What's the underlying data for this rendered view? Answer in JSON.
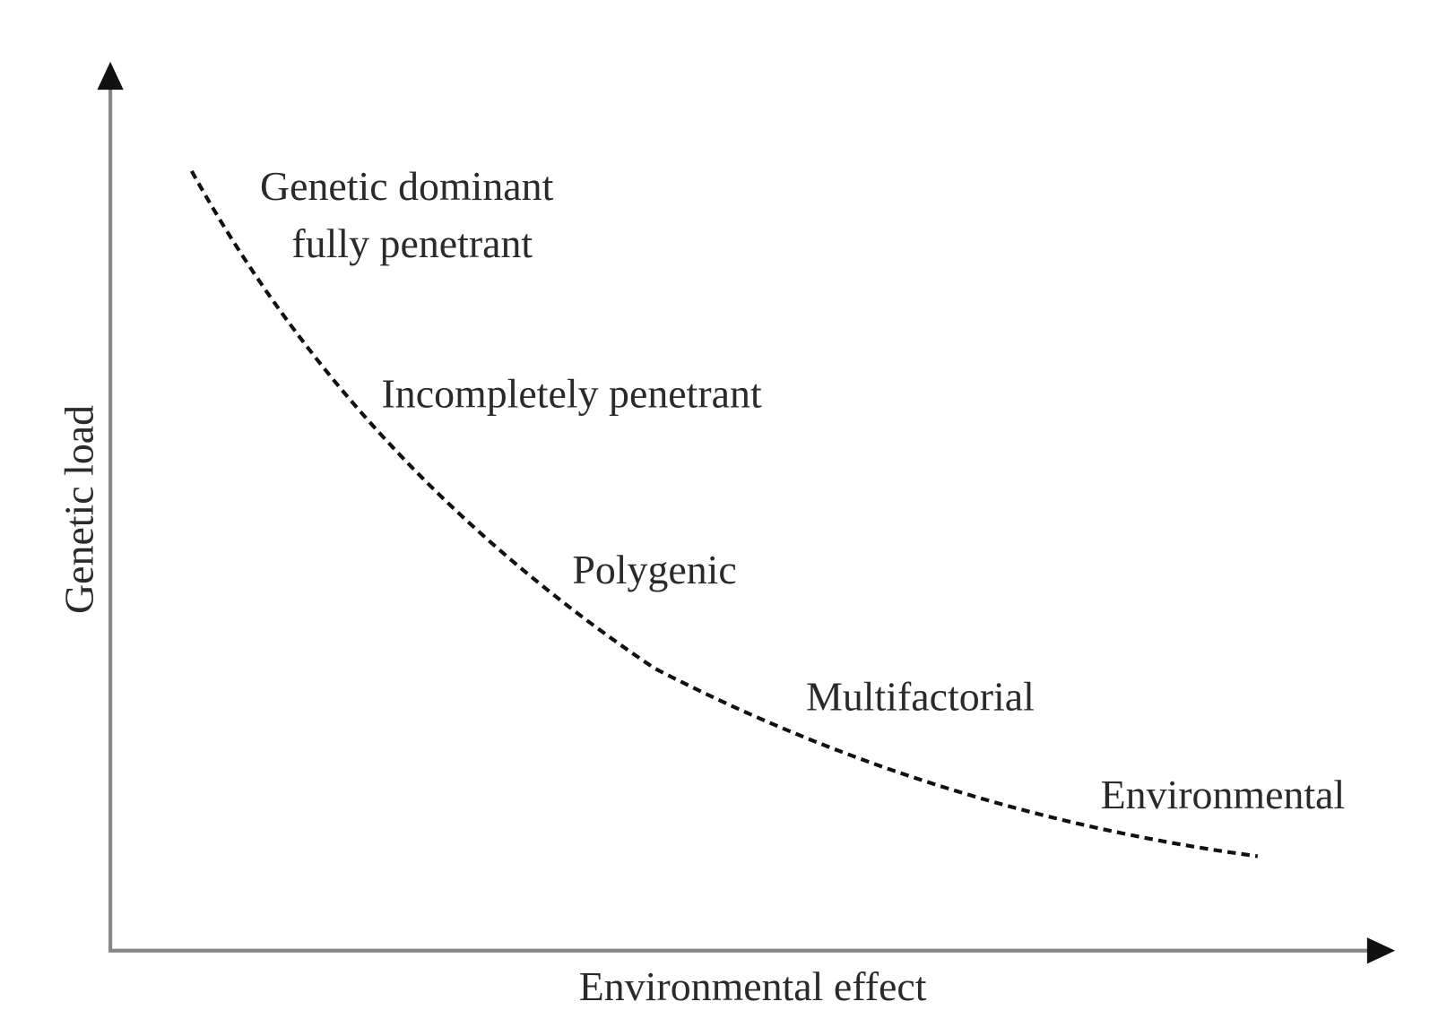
{
  "x_axis": {
    "label": "Environmental effect"
  },
  "y_axis": {
    "label": "Genetic load"
  },
  "regions": [
    {
      "lines": [
        "Genetic dominant",
        "fully penetrant"
      ]
    },
    {
      "lines": [
        "Incompletely penetrant"
      ]
    },
    {
      "lines": [
        "Polygenic"
      ]
    },
    {
      "lines": [
        "Multifactorial"
      ]
    },
    {
      "lines": [
        "Environmental"
      ]
    }
  ]
}
